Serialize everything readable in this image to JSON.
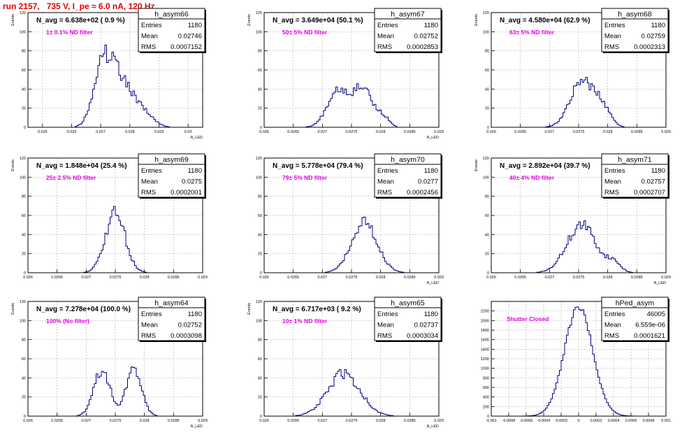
{
  "run_title": "run 2157,   735 V, I_pe ≈ 6.0 nA, 120 Hz",
  "colors": {
    "title": "#e00000",
    "hist_line": "#000080",
    "annotation": "#e000e0",
    "grid": "#bbbbbb",
    "frame": "#000000"
  },
  "stats_labels": {
    "entries": "Entries",
    "mean": "Mean",
    "rms": "RMS"
  },
  "chart_data": [
    {
      "type": "histogram",
      "name": "h_asym66",
      "entries": "1180",
      "mean": "0.02746",
      "rms": "0.0007152",
      "n_avg": "N_avg = 6.638e+02 ( 0.9 %)",
      "annotation": "1± 0.1% ND filter",
      "ylabel": "Events",
      "xlabel": "A_LED",
      "xlim": [
        0.0245,
        0.0305
      ],
      "ylim": [
        0,
        120
      ],
      "xticks": [
        0.025,
        0.026,
        0.027,
        0.028,
        0.029,
        0.03
      ],
      "xticklabels": [
        "0.025",
        "0.026",
        "0.027",
        "0.028",
        "0.029",
        "0.03"
      ],
      "yticks": [
        0,
        20,
        40,
        60,
        80,
        100,
        120
      ],
      "yticklabels": [
        "0",
        "20",
        "40",
        "60",
        "80",
        "100",
        "120"
      ],
      "peaks": [
        {
          "x": 0.02702,
          "y": 50,
          "w": 0.0003
        },
        {
          "x": 0.0275,
          "y": 40,
          "w": 0.0004
        },
        {
          "x": 0.028,
          "y": 22,
          "w": 0.00045
        },
        {
          "x": 0.0286,
          "y": 6,
          "w": 0.0003
        }
      ],
      "nbins": 100,
      "noise": 0.14,
      "seed": 66
    },
    {
      "type": "histogram",
      "name": "h_asym67",
      "entries": "1180",
      "mean": "0.02752",
      "rms": "0.0002853",
      "n_avg": "N_avg = 3.649e+04 (50.1 %)",
      "annotation": "50± 5% ND filter",
      "ylabel": "Events",
      "xlabel": "A_LED",
      "xlim": [
        0.026,
        0.029
      ],
      "ylim": [
        0,
        120
      ],
      "xticks": [
        0.026,
        0.0265,
        0.027,
        0.0275,
        0.028,
        0.0285,
        0.029
      ],
      "xticklabels": [
        "0.026",
        "0.0265",
        "0.027",
        "0.0275",
        "0.028",
        "0.0285",
        "0.029"
      ],
      "yticks": [
        0,
        20,
        40,
        60,
        80,
        100,
        120
      ],
      "yticklabels": [
        "0",
        "20",
        "40",
        "60",
        "80",
        "100",
        "120"
      ],
      "peaks": [
        {
          "x": 0.02727,
          "y": 40,
          "w": 0.00018
        },
        {
          "x": 0.0277,
          "y": 42,
          "w": 0.00016
        },
        {
          "x": 0.02805,
          "y": 10,
          "w": 0.0001
        }
      ],
      "nbins": 100,
      "noise": 0.12,
      "seed": 67
    },
    {
      "type": "histogram",
      "name": "h_asym68",
      "entries": "1180",
      "mean": "0.02759",
      "rms": "0.0002313",
      "n_avg": "N_avg = 4.580e+04 (62.9 %)",
      "annotation": "63± 5% ND filter",
      "ylabel": "Events",
      "xlabel": "",
      "xlim": [
        0.026,
        0.029
      ],
      "ylim": [
        0,
        120
      ],
      "xticks": [
        0.026,
        0.0265,
        0.027,
        0.0275,
        0.028,
        0.0285,
        0.029
      ],
      "xticklabels": [
        "0.026",
        "0.0265",
        "0.027",
        "0.0275",
        "0.028",
        "0.0285",
        "0.029"
      ],
      "yticks": [
        0,
        20,
        40,
        60,
        80,
        100,
        120
      ],
      "yticklabels": [
        "0",
        "20",
        "40",
        "60",
        "80",
        "100",
        "120"
      ],
      "peaks": [
        {
          "x": 0.02755,
          "y": 48,
          "w": 0.0002
        },
        {
          "x": 0.0279,
          "y": 20,
          "w": 0.00014
        }
      ],
      "nbins": 100,
      "noise": 0.12,
      "seed": 68
    },
    {
      "type": "histogram",
      "name": "h_asym69",
      "entries": "1180",
      "mean": "0.0275",
      "rms": "0.0002001",
      "n_avg": "N_avg = 1.848e+04 (25.4 %)",
      "annotation": "25± 2.5% ND filter",
      "ylabel": "Events",
      "xlabel": "",
      "xlim": [
        0.026,
        0.029
      ],
      "ylim": [
        0,
        120
      ],
      "xticks": [
        0.026,
        0.0265,
        0.027,
        0.0275,
        0.028,
        0.0285,
        0.029
      ],
      "xticklabels": [
        "0.026",
        "0.0265",
        "0.027",
        "0.0275",
        "0.028",
        "0.0285",
        "0.029"
      ],
      "yticks": [
        0,
        20,
        40,
        60,
        80,
        100,
        120
      ],
      "yticklabels": [
        "0",
        "20",
        "40",
        "60",
        "80",
        "100",
        "120"
      ],
      "peaks": [
        {
          "x": 0.0275,
          "y": 62,
          "w": 0.00017
        }
      ],
      "nbins": 100,
      "noise": 0.14,
      "seed": 69
    },
    {
      "type": "histogram",
      "name": "h_asym70",
      "entries": "1180",
      "mean": "0.0277",
      "rms": "0.0002456",
      "n_avg": "N_avg = 5.778e+04 (79.4 %)",
      "annotation": "79± 5% ND filter",
      "ylabel": "",
      "xlabel": "A_LED",
      "xlim": [
        0.026,
        0.029
      ],
      "ylim": [
        0,
        120
      ],
      "xticks": [
        0.026,
        0.0265,
        0.027,
        0.0275,
        0.028,
        0.0285,
        0.029
      ],
      "xticklabels": [
        "0.026",
        "0.0265",
        "0.027",
        "0.0275",
        "0.028",
        "0.0285",
        "0.029"
      ],
      "yticks": [
        0,
        20,
        40,
        60,
        80,
        100,
        120
      ],
      "yticklabels": [
        "0",
        "20",
        "40",
        "60",
        "80",
        "100",
        "120"
      ],
      "peaks": [
        {
          "x": 0.02772,
          "y": 52,
          "w": 0.00022
        }
      ],
      "nbins": 100,
      "noise": 0.12,
      "seed": 70
    },
    {
      "type": "histogram",
      "name": "h_asym71",
      "entries": "1180",
      "mean": "0.02757",
      "rms": "0.0002707",
      "n_avg": "N_avg = 2.892e+04 (39.7 %)",
      "annotation": "40± 4% ND filter",
      "ylabel": "Events",
      "xlabel": "A_LED",
      "xlim": [
        0.026,
        0.029
      ],
      "ylim": [
        0,
        120
      ],
      "xticks": [
        0.026,
        0.0265,
        0.027,
        0.0275,
        0.028,
        0.0285,
        0.029
      ],
      "xticklabels": [
        "0.026",
        "0.0265",
        "0.027",
        "0.0275",
        "0.028",
        "0.0285",
        "0.029"
      ],
      "yticks": [
        0,
        20,
        40,
        60,
        80,
        100,
        120
      ],
      "yticklabels": [
        "0",
        "20",
        "40",
        "60",
        "80",
        "100",
        "120"
      ],
      "peaks": [
        {
          "x": 0.02755,
          "y": 50,
          "w": 0.00025
        },
        {
          "x": 0.0281,
          "y": 10,
          "w": 0.00012
        }
      ],
      "nbins": 100,
      "noise": 0.13,
      "seed": 71
    },
    {
      "type": "histogram",
      "name": "h_asym64",
      "entries": "1180",
      "mean": "0.02752",
      "rms": "0.0003098",
      "n_avg": "N_avg = 7.278e+04 (100.0 %)",
      "annotation": "100% (No filter)",
      "ylabel": "Events",
      "xlabel": "A_LED",
      "xlim": [
        0.026,
        0.029
      ],
      "ylim": [
        0,
        120
      ],
      "xticks": [
        0.026,
        0.0265,
        0.027,
        0.0275,
        0.028,
        0.0285,
        0.029
      ],
      "xticklabels": [
        "0.026",
        "0.0265",
        "0.027",
        "0.0275",
        "0.028",
        "0.0285",
        "0.029"
      ],
      "yticks": [
        0,
        20,
        40,
        60,
        80,
        100,
        120
      ],
      "yticklabels": [
        "0",
        "20",
        "40",
        "60",
        "80",
        "100",
        "120"
      ],
      "peaks": [
        {
          "x": 0.02727,
          "y": 48,
          "w": 0.00014
        },
        {
          "x": 0.02782,
          "y": 50,
          "w": 0.00013
        }
      ],
      "nbins": 100,
      "noise": 0.12,
      "seed": 64
    },
    {
      "type": "histogram",
      "name": "h_asym65",
      "entries": "1180",
      "mean": "0.02737",
      "rms": "0.0003034",
      "n_avg": "N_avg = 6.717e+03 ( 9.2 %)",
      "annotation": "10± 1% ND filter",
      "ylabel": "Events",
      "xlabel": "A_LED",
      "xlim": [
        0.026,
        0.029
      ],
      "ylim": [
        0,
        120
      ],
      "xticks": [
        0.026,
        0.0265,
        0.027,
        0.0275,
        0.028,
        0.0285,
        0.029
      ],
      "xticklabels": [
        "0.026",
        "0.0265",
        "0.027",
        "0.0275",
        "0.028",
        "0.0285",
        "0.029"
      ],
      "yticks": [
        0,
        20,
        40,
        60,
        80,
        100,
        120
      ],
      "yticklabels": [
        "0",
        "20",
        "40",
        "60",
        "80",
        "100",
        "120"
      ],
      "peaks": [
        {
          "x": 0.02737,
          "y": 44,
          "w": 0.00028
        }
      ],
      "nbins": 100,
      "noise": 0.14,
      "seed": 65
    },
    {
      "type": "histogram",
      "name": "hPed_asym",
      "entries": "46005",
      "mean": "6.559e-06",
      "rms": "0.0001621",
      "n_avg": "",
      "annotation": "Shutter Closed",
      "ylabel": "",
      "xlabel": "",
      "xlim": [
        -0.001,
        0.001
      ],
      "ylim": [
        0,
        2400
      ],
      "xticks": [
        -0.001,
        -0.0008,
        -0.0006,
        -0.0004,
        -0.0002,
        0,
        0.0002,
        0.0004,
        0.0006,
        0.0008,
        0.001
      ],
      "xticklabels": [
        "-0.001",
        "-0.0008",
        "-0.0006",
        "-0.0004",
        "-0.0002",
        "0",
        "0.0002",
        "0.0004",
        "0.0006",
        "0.0008",
        "0.001"
      ],
      "yticks": [
        0,
        200,
        400,
        600,
        800,
        1000,
        1200,
        1400,
        1600,
        1800,
        2000,
        2200
      ],
      "yticklabels": [
        "0",
        "200",
        "400",
        "600",
        "800",
        "1000",
        "1200",
        "1400",
        "1600",
        "1800",
        "2000",
        "2200"
      ],
      "peaks": [
        {
          "x": 0.0,
          "y": 2280,
          "w": 0.000162
        }
      ],
      "nbins": 100,
      "noise": 0.03,
      "seed": 99
    }
  ]
}
